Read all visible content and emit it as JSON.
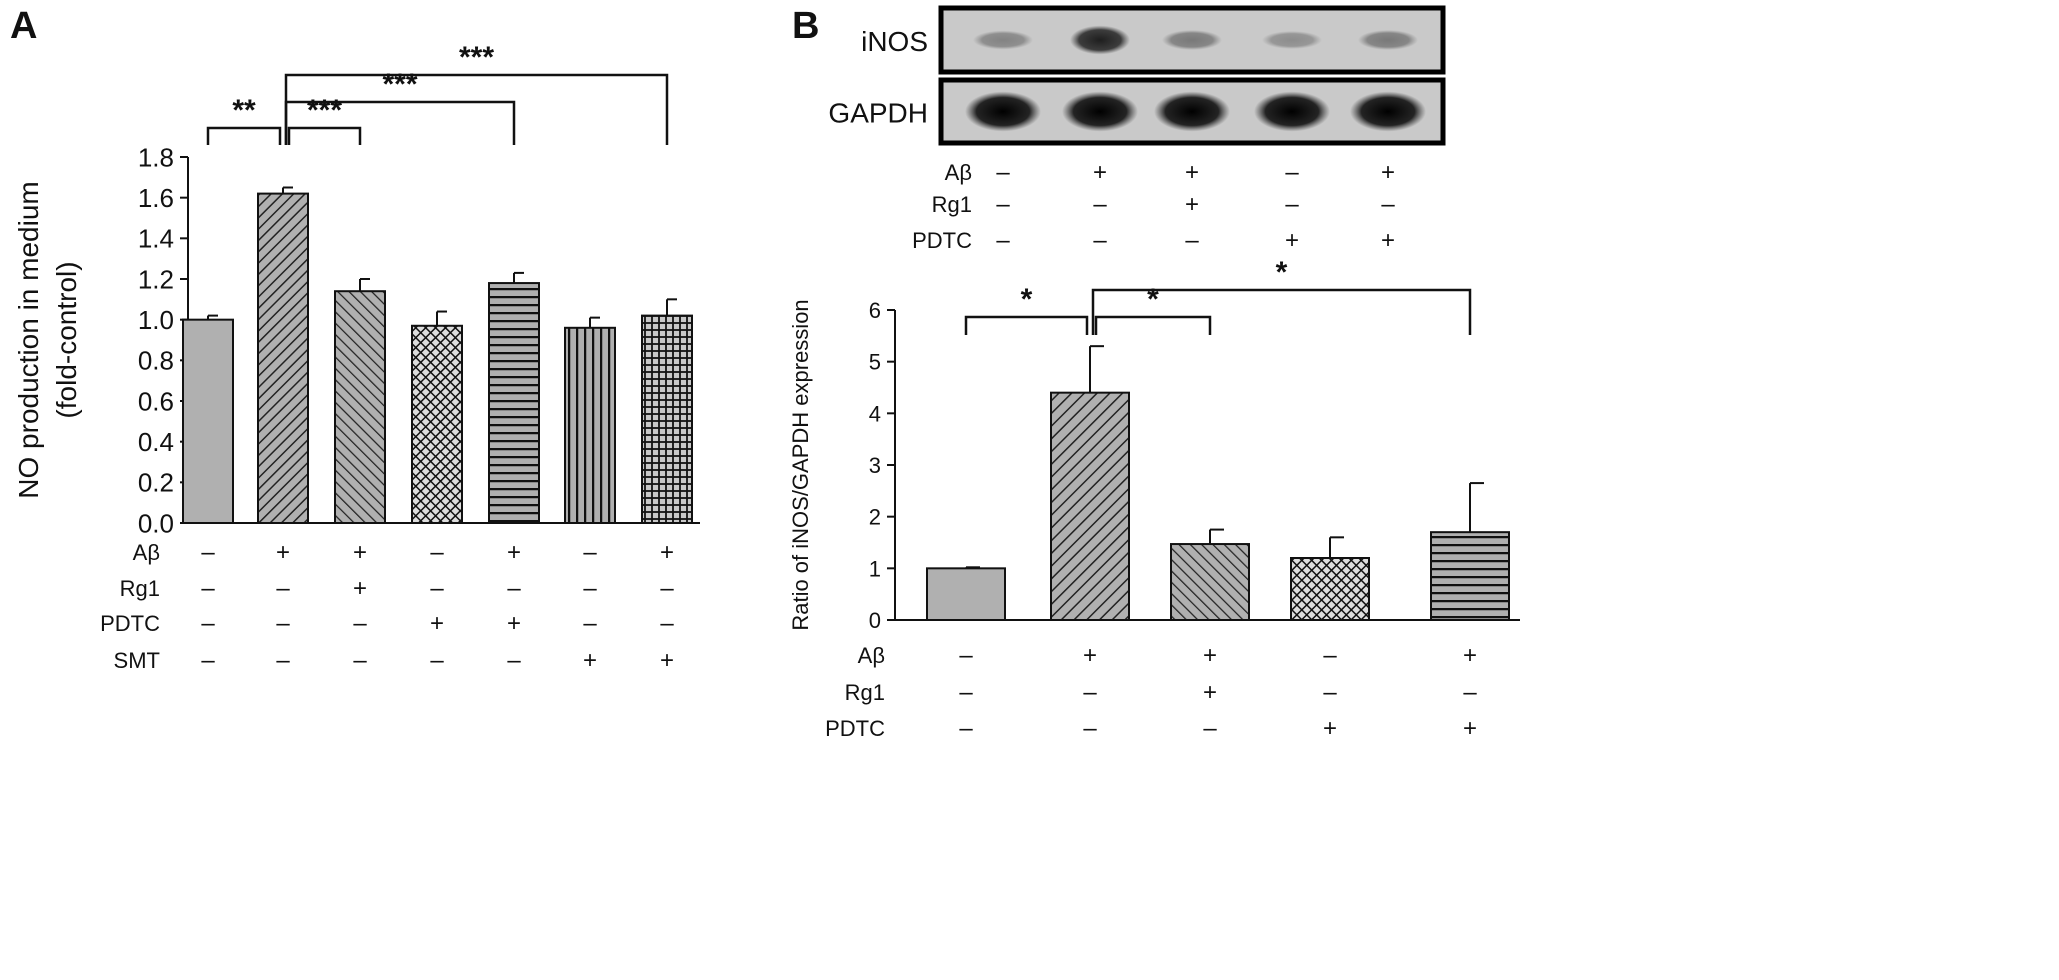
{
  "panel_a_label": "A",
  "panel_b_label": "B",
  "blot": {
    "rows": [
      "iNOS",
      "GAPDH"
    ],
    "inos_intensity": [
      0.35,
      0.85,
      0.4,
      0.3,
      0.4
    ],
    "gapdh_intensity": [
      1,
      1,
      1,
      1,
      1
    ],
    "treatments": [
      {
        "name": "Aβ",
        "values": [
          "–",
          "+",
          "+",
          "–",
          "+"
        ]
      },
      {
        "name": "Rg1",
        "values": [
          "–",
          "–",
          "+",
          "–",
          "–"
        ]
      },
      {
        "name": "PDTC",
        "values": [
          "–",
          "–",
          "–",
          "+",
          "+"
        ]
      }
    ]
  },
  "chart_data": [
    {
      "type": "bar",
      "title": "",
      "ylabel": "NO production in medium",
      "ylabel2": "(fold-control)",
      "ylim": [
        0,
        1.8
      ],
      "yticks": [
        "0.0",
        "0.2",
        "0.4",
        "0.6",
        "0.8",
        "1.0",
        "1.2",
        "1.4",
        "1.6",
        "1.8"
      ],
      "values": [
        1.0,
        1.62,
        1.14,
        0.97,
        1.18,
        0.96,
        1.02
      ],
      "errors": [
        0.02,
        0.03,
        0.06,
        0.07,
        0.05,
        0.05,
        0.08
      ],
      "patterns": [
        "solid",
        "diag-right-dense",
        "diag-left",
        "crosshatch",
        "horizontal",
        "vertical",
        "grid"
      ],
      "treatments": [
        {
          "name": "Aβ",
          "values": [
            "–",
            "+",
            "+",
            "–",
            "+",
            "–",
            "+"
          ]
        },
        {
          "name": "Rg1",
          "values": [
            "–",
            "–",
            "+",
            "–",
            "–",
            "–",
            "–"
          ]
        },
        {
          "name": "PDTC",
          "values": [
            "–",
            "–",
            "–",
            "+",
            "+",
            "–",
            "–"
          ]
        },
        {
          "name": "SMT",
          "values": [
            "–",
            "–",
            "–",
            "–",
            "–",
            "+",
            "+"
          ]
        }
      ],
      "significance": [
        {
          "from": 0,
          "to": 1,
          "label": "**"
        },
        {
          "from": 1,
          "to": 2,
          "label": "***"
        },
        {
          "from": 1,
          "to": 4,
          "label": "***"
        },
        {
          "from": 1,
          "to": 6,
          "label": "***"
        }
      ]
    },
    {
      "type": "bar",
      "title": "",
      "ylabel": "Ratio of iNOS/GAPDH expression",
      "ylim": [
        0,
        6
      ],
      "yticks": [
        "0",
        "1",
        "2",
        "3",
        "4",
        "5",
        "6"
      ],
      "values": [
        1.0,
        4.4,
        1.47,
        1.2,
        1.7
      ],
      "errors": [
        0.02,
        0.9,
        0.28,
        0.4,
        0.95
      ],
      "patterns": [
        "solid",
        "diag-right",
        "diag-left",
        "crosshatch",
        "horizontal"
      ],
      "treatments": [
        {
          "name": "Aβ",
          "values": [
            "–",
            "+",
            "+",
            "–",
            "+"
          ]
        },
        {
          "name": "Rg1",
          "values": [
            "–",
            "–",
            "+",
            "–",
            "–"
          ]
        },
        {
          "name": "PDTC",
          "values": [
            "–",
            "–",
            "–",
            "+",
            "+"
          ]
        }
      ],
      "significance": [
        {
          "from": 0,
          "to": 1,
          "label": "*"
        },
        {
          "from": 1,
          "to": 2,
          "label": "*"
        },
        {
          "from": 1,
          "to": 4,
          "label": "*"
        }
      ]
    }
  ]
}
